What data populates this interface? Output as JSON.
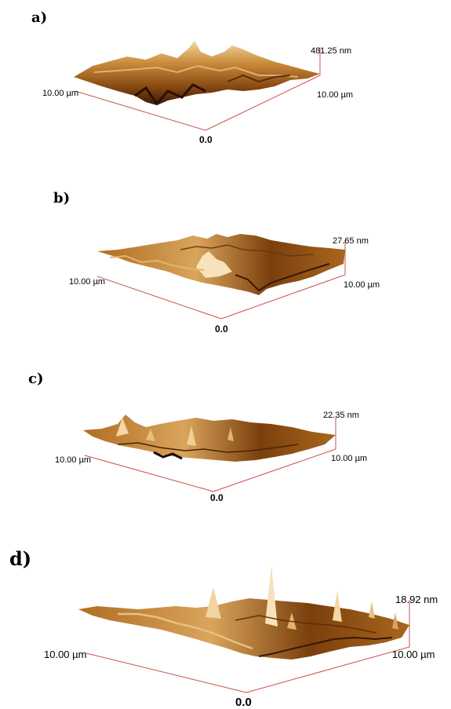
{
  "figure": {
    "colors": {
      "axis": "#c9504f",
      "surface_dark": "#3b1704",
      "surface_mid": "#9b5a16",
      "surface_light": "#f3d7a4",
      "background": "#ffffff"
    },
    "panels": [
      {
        "letter": "a)",
        "z_label": "481.25 nm",
        "y_label": "10.00 µm",
        "x_label": "10.00 µm",
        "origin_label": "0.0"
      },
      {
        "letter": "b)",
        "z_label": "27.65 nm",
        "y_label": "10.00 µm",
        "x_label": "10.00 µm",
        "origin_label": "0.0"
      },
      {
        "letter": "c)",
        "z_label": "22.35 nm",
        "y_label": "10.00 µm",
        "x_label": "10.00 µm",
        "origin_label": "0.0"
      },
      {
        "letter": "d)",
        "z_label": "18.92 nm",
        "y_label": "10.00 µm",
        "x_label": "10.00 µm",
        "origin_label": "0.0"
      }
    ]
  }
}
